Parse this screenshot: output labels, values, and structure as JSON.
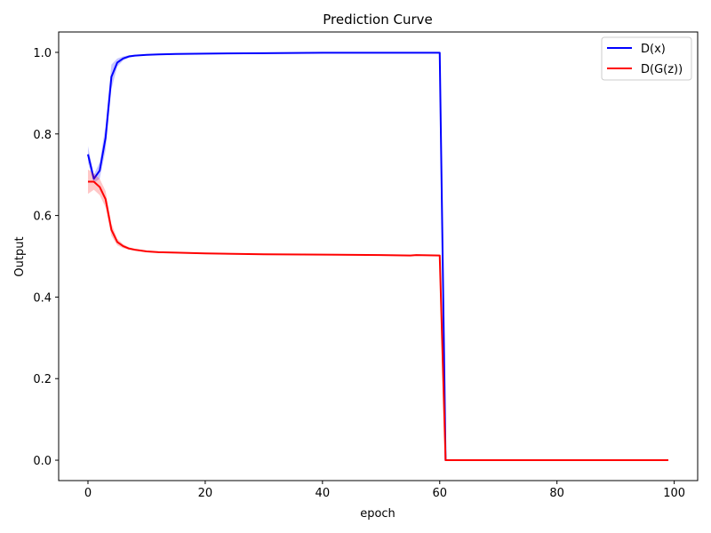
{
  "chart_data": {
    "type": "line",
    "title": "Prediction Curve",
    "xlabel": "epoch",
    "ylabel": "Output",
    "xlim": [
      -5,
      104
    ],
    "ylim": [
      -0.05,
      1.05
    ],
    "xticks": [
      0,
      20,
      40,
      60,
      80,
      100
    ],
    "yticks": [
      0.0,
      0.2,
      0.4,
      0.6,
      0.8,
      1.0
    ],
    "xtick_labels": [
      "0",
      "20",
      "40",
      "60",
      "80",
      "100"
    ],
    "ytick_labels": [
      "0.0",
      "0.2",
      "0.4",
      "0.6",
      "0.8",
      "1.0"
    ],
    "grid": false,
    "legend_position": "top-right",
    "series": [
      {
        "name": "D(x)",
        "color": "#0000ff",
        "x": [
          0,
          1,
          2,
          3,
          4,
          5,
          6,
          7,
          8,
          10,
          12,
          15,
          20,
          30,
          40,
          50,
          55,
          60,
          61,
          99
        ],
        "y": [
          0.75,
          0.69,
          0.71,
          0.79,
          0.94,
          0.975,
          0.985,
          0.99,
          0.992,
          0.994,
          0.995,
          0.996,
          0.997,
          0.998,
          0.999,
          0.999,
          0.999,
          0.999,
          0.0,
          0.0
        ],
        "band": [
          0.02,
          0.01,
          0.02,
          0.03,
          0.03,
          0.01,
          0.005,
          0.003,
          0.002,
          0.001,
          0.001,
          0.001,
          0.001,
          0.001,
          0.001,
          0.001,
          0.001,
          0.001,
          0.0,
          0.0
        ]
      },
      {
        "name": "D(G(z))",
        "color": "#ff0000",
        "x": [
          0,
          1,
          2,
          3,
          4,
          5,
          6,
          7,
          8,
          10,
          12,
          15,
          20,
          30,
          40,
          50,
          55,
          56,
          60,
          61,
          99
        ],
        "y": [
          0.683,
          0.683,
          0.67,
          0.64,
          0.565,
          0.535,
          0.525,
          0.519,
          0.516,
          0.512,
          0.51,
          0.509,
          0.507,
          0.505,
          0.504,
          0.503,
          0.502,
          0.503,
          0.502,
          0.0,
          0.0
        ],
        "band": [
          0.03,
          0.02,
          0.02,
          0.02,
          0.015,
          0.008,
          0.005,
          0.003,
          0.002,
          0.002,
          0.001,
          0.001,
          0.001,
          0.001,
          0.001,
          0.001,
          0.001,
          0.001,
          0.001,
          0.0,
          0.0
        ]
      }
    ]
  }
}
